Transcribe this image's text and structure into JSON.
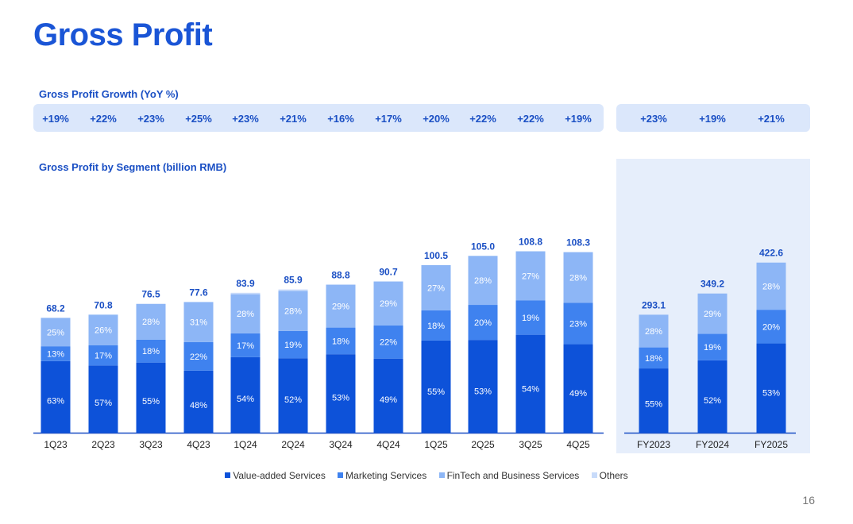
{
  "slide": {
    "title": "Gross Profit",
    "page_number": "16"
  },
  "growth": {
    "label": "Gross Profit Growth (YoY %)",
    "quarterly": [
      "+19%",
      "+22%",
      "+23%",
      "+25%",
      "+23%",
      "+21%",
      "+16%",
      "+17%",
      "+20%",
      "+22%",
      "+22%",
      "+19%"
    ],
    "annual": [
      "+23%",
      "+19%",
      "+21%"
    ]
  },
  "chart_data": {
    "type": "bar",
    "stacked": true,
    "title": "Gross Profit by Segment (billion RMB)",
    "ylabel": "billion RMB",
    "ylim": [
      0,
      130
    ],
    "categories": [
      "1Q23",
      "2Q23",
      "3Q23",
      "4Q23",
      "1Q24",
      "2Q24",
      "3Q24",
      "4Q24",
      "1Q25",
      "2Q25",
      "3Q25",
      "4Q25",
      "FY2023",
      "FY2024",
      "FY2025"
    ],
    "totals": [
      "68.2",
      "70.8",
      "76.5",
      "77.6",
      "83.9",
      "85.9",
      "88.8",
      "90.7",
      "100.5",
      "105.0",
      "108.8",
      "108.3",
      "293.1",
      "349.2",
      "422.6"
    ],
    "annual_scale_note": "FY bars drawn on a separate scale (0-500)",
    "series": [
      {
        "name": "Value-added Services",
        "color": "#0d52d9",
        "values": [
          63,
          57,
          55,
          48,
          54,
          52,
          53,
          49,
          55,
          53,
          54,
          49,
          55,
          52,
          53
        ]
      },
      {
        "name": "Marketing Services",
        "color": "#3f82ef",
        "values": [
          13,
          17,
          18,
          22,
          17,
          19,
          18,
          22,
          18,
          20,
          19,
          23,
          18,
          19,
          20
        ]
      },
      {
        "name": "FinTech and Business Services",
        "color": "#8db6f6",
        "values": [
          25,
          26,
          28,
          31,
          28,
          28,
          29,
          29,
          27,
          28,
          27,
          28,
          28,
          29,
          28
        ]
      },
      {
        "name": "Others",
        "color": "#c8dbfa",
        "values": [
          null,
          null,
          null,
          null,
          null,
          null,
          null,
          null,
          null,
          null,
          null,
          null,
          null,
          null,
          null
        ]
      }
    ],
    "legend": [
      "Value-added Services",
      "Marketing Services",
      "FinTech and Business Services",
      "Others"
    ]
  }
}
